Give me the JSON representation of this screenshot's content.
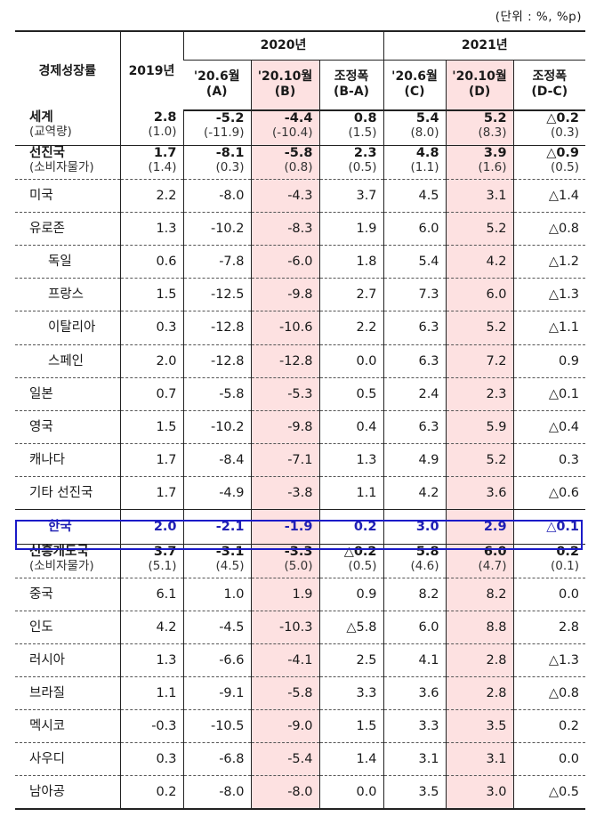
{
  "unit_note": "(단위 : %, %p)",
  "header": {
    "label": "경제성장률",
    "y2019": "2019년",
    "y2020": "2020년",
    "y2021": "2021년",
    "c1": [
      "'20.6월",
      "(A)"
    ],
    "c2": [
      "'20.10월",
      "(B)"
    ],
    "c3": [
      "조정폭",
      "(B-A)"
    ],
    "c4": [
      "'20.6월",
      "(C)"
    ],
    "c5": [
      "'20.10월",
      "(D)"
    ],
    "c6": [
      "조정폭",
      "(D-C)"
    ]
  },
  "rows": [
    {
      "name": "세계",
      "sub": "(교역량)",
      "bold": true,
      "indent": 0,
      "v": [
        "2.8",
        "-5.2",
        "-4.4",
        "0.8",
        "5.4",
        "5.2",
        "△0.2"
      ],
      "s": [
        "(1.0)",
        "(-11.9)",
        "(-10.4)",
        "(1.5)",
        "(8.0)",
        "(8.3)",
        "(0.3)"
      ]
    },
    {
      "name": "선진국",
      "sub": "(소비자물가)",
      "bold": true,
      "indent": 0,
      "v": [
        "1.7",
        "-8.1",
        "-5.8",
        "2.3",
        "4.8",
        "3.9",
        "△0.9"
      ],
      "s": [
        "(1.4)",
        "(0.3)",
        "(0.8)",
        "(0.5)",
        "(1.1)",
        "(1.6)",
        "(0.5)"
      ]
    },
    {
      "name": "미국",
      "indent": 1,
      "v": [
        "2.2",
        "-8.0",
        "-4.3",
        "3.7",
        "4.5",
        "3.1",
        "△1.4"
      ]
    },
    {
      "name": "유로존",
      "indent": 1,
      "v": [
        "1.3",
        "-10.2",
        "-8.3",
        "1.9",
        "6.0",
        "5.2",
        "△0.8"
      ]
    },
    {
      "name": "독일",
      "indent": 2,
      "v": [
        "0.6",
        "-7.8",
        "-6.0",
        "1.8",
        "5.4",
        "4.2",
        "△1.2"
      ]
    },
    {
      "name": "프랑스",
      "indent": 2,
      "v": [
        "1.5",
        "-12.5",
        "-9.8",
        "2.7",
        "7.3",
        "6.0",
        "△1.3"
      ]
    },
    {
      "name": "이탈리아",
      "indent": 2,
      "v": [
        "0.3",
        "-12.8",
        "-10.6",
        "2.2",
        "6.3",
        "5.2",
        "△1.1"
      ]
    },
    {
      "name": "스페인",
      "indent": 2,
      "v": [
        "2.0",
        "-12.8",
        "-12.8",
        "0.0",
        "6.3",
        "7.2",
        "0.9"
      ]
    },
    {
      "name": "일본",
      "indent": 1,
      "v": [
        "0.7",
        "-5.8",
        "-5.3",
        "0.5",
        "2.4",
        "2.3",
        "△0.1"
      ]
    },
    {
      "name": "영국",
      "indent": 1,
      "v": [
        "1.5",
        "-10.2",
        "-9.8",
        "0.4",
        "6.3",
        "5.9",
        "△0.4"
      ]
    },
    {
      "name": "캐나다",
      "indent": 1,
      "v": [
        "1.7",
        "-8.4",
        "-7.1",
        "1.3",
        "4.9",
        "5.2",
        "0.3"
      ]
    },
    {
      "name": "기타 선진국",
      "indent": 1,
      "v": [
        "1.7",
        "-4.9",
        "-3.8",
        "1.1",
        "4.2",
        "3.6",
        "△0.6"
      ]
    },
    {
      "name": "한국",
      "indent": 3,
      "korea": true,
      "v": [
        "2.0",
        "-2.1",
        "-1.9",
        "0.2",
        "3.0",
        "2.9",
        "△0.1"
      ]
    },
    {
      "name": "신흥개도국",
      "sub": "(소비자물가)",
      "bold": true,
      "indent": 0,
      "v": [
        "3.7",
        "-3.1",
        "-3.3",
        "△0.2",
        "5.8",
        "6.0",
        "0.2"
      ],
      "s": [
        "(5.1)",
        "(4.5)",
        "(5.0)",
        "(0.5)",
        "(4.6)",
        "(4.7)",
        "(0.1)"
      ]
    },
    {
      "name": "중국",
      "indent": 1,
      "v": [
        "6.1",
        "1.0",
        "1.9",
        "0.9",
        "8.2",
        "8.2",
        "0.0"
      ]
    },
    {
      "name": "인도",
      "indent": 1,
      "v": [
        "4.2",
        "-4.5",
        "-10.3",
        "△5.8",
        "6.0",
        "8.8",
        "2.8"
      ]
    },
    {
      "name": "러시아",
      "indent": 1,
      "v": [
        "1.3",
        "-6.6",
        "-4.1",
        "2.5",
        "4.1",
        "2.8",
        "△1.3"
      ]
    },
    {
      "name": "브라질",
      "indent": 1,
      "v": [
        "1.1",
        "-9.1",
        "-5.8",
        "3.3",
        "3.6",
        "2.8",
        "△0.8"
      ]
    },
    {
      "name": "멕시코",
      "indent": 1,
      "v": [
        "-0.3",
        "-10.5",
        "-9.0",
        "1.5",
        "3.3",
        "3.5",
        "0.2"
      ]
    },
    {
      "name": "사우디",
      "indent": 1,
      "v": [
        "0.3",
        "-6.8",
        "-5.4",
        "1.4",
        "3.1",
        "3.1",
        "0.0"
      ]
    },
    {
      "name": "남아공",
      "indent": 1,
      "v": [
        "0.2",
        "-8.0",
        "-8.0",
        "0.0",
        "3.5",
        "3.0",
        "△0.5"
      ]
    }
  ]
}
